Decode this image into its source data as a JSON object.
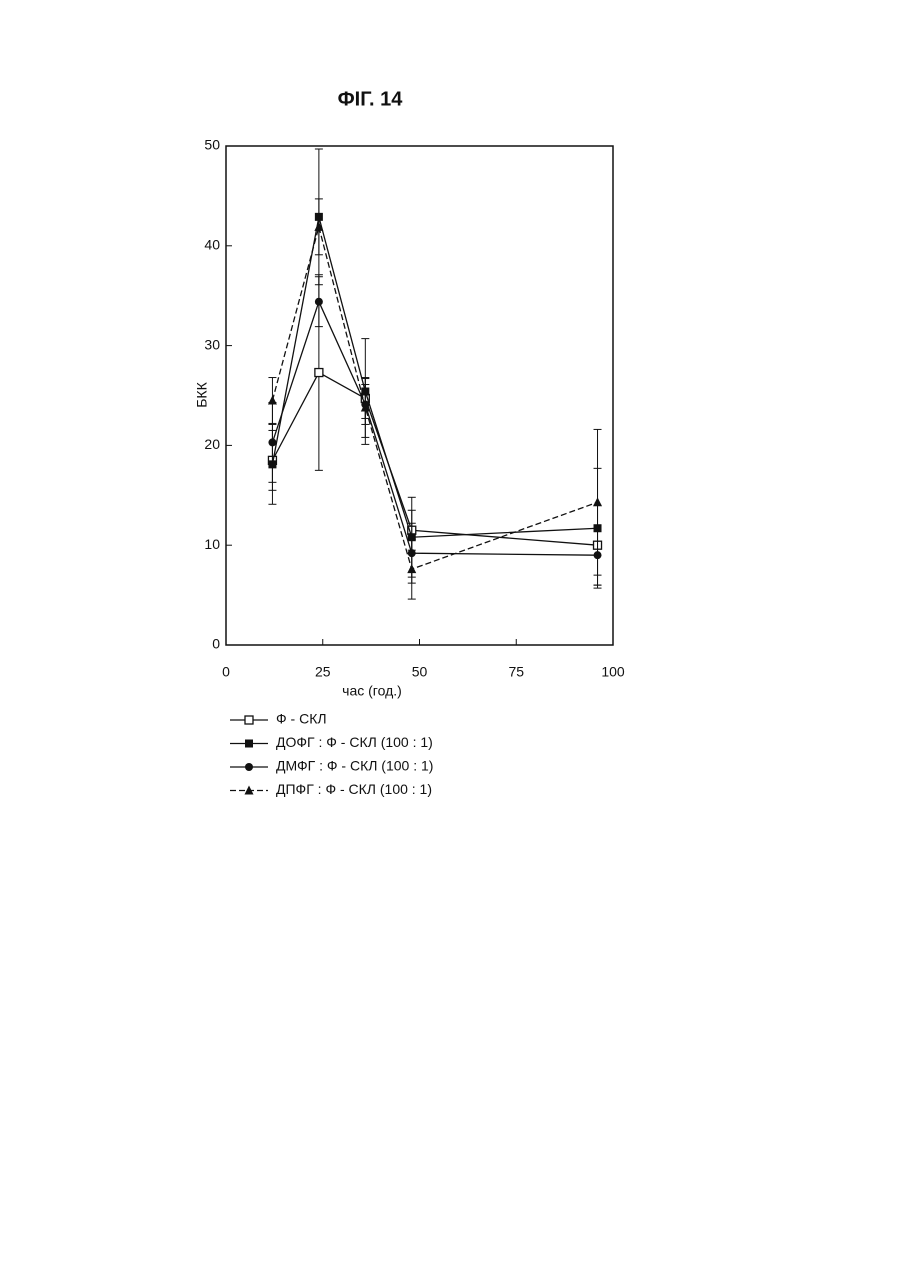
{
  "chart_data": {
    "type": "line",
    "title": "ФІГ. 14",
    "x_label": "час (год.)",
    "y_label": "БКК",
    "xlim": [
      0,
      100
    ],
    "xticks": [
      0,
      25,
      50,
      75,
      100
    ],
    "ylim": [
      0,
      50
    ],
    "yticks": [
      0,
      10,
      20,
      30,
      40,
      50
    ],
    "x": [
      12,
      24,
      36,
      48,
      96
    ],
    "series": [
      {
        "name": "Ф - СКЛ",
        "color": "#111111",
        "marker": "square-open",
        "dashed": false,
        "values": [
          18.5,
          27.3,
          24.7,
          11.5,
          10.0
        ],
        "errors": [
          3,
          9.8,
          2,
          2,
          4
        ]
      },
      {
        "name": "ДОФГ : Ф - СКЛ (100 : 1)",
        "color": "#111111",
        "marker": "square",
        "dashed": false,
        "values": [
          18.1,
          42.9,
          25.4,
          10.8,
          11.7
        ],
        "errors": [
          4,
          6.8,
          5.3,
          4,
          6
        ]
      },
      {
        "name": "ДМФГ : Ф - СКЛ (100 : 1)",
        "color": "#111111",
        "marker": "circle",
        "dashed": false,
        "values": [
          20.3,
          34.4,
          24.1,
          9.2,
          9.0
        ],
        "errors": [
          4,
          2.5,
          2,
          3,
          3
        ]
      },
      {
        "name": "ДПФГ : Ф - СКЛ (100 : 1)",
        "color": "#111111",
        "marker": "triangle",
        "dashed": true,
        "values": [
          24.5,
          41.9,
          23.8,
          7.6,
          14.3
        ],
        "errors": [
          2.3,
          2.8,
          3,
          3,
          7.3
        ]
      }
    ]
  }
}
